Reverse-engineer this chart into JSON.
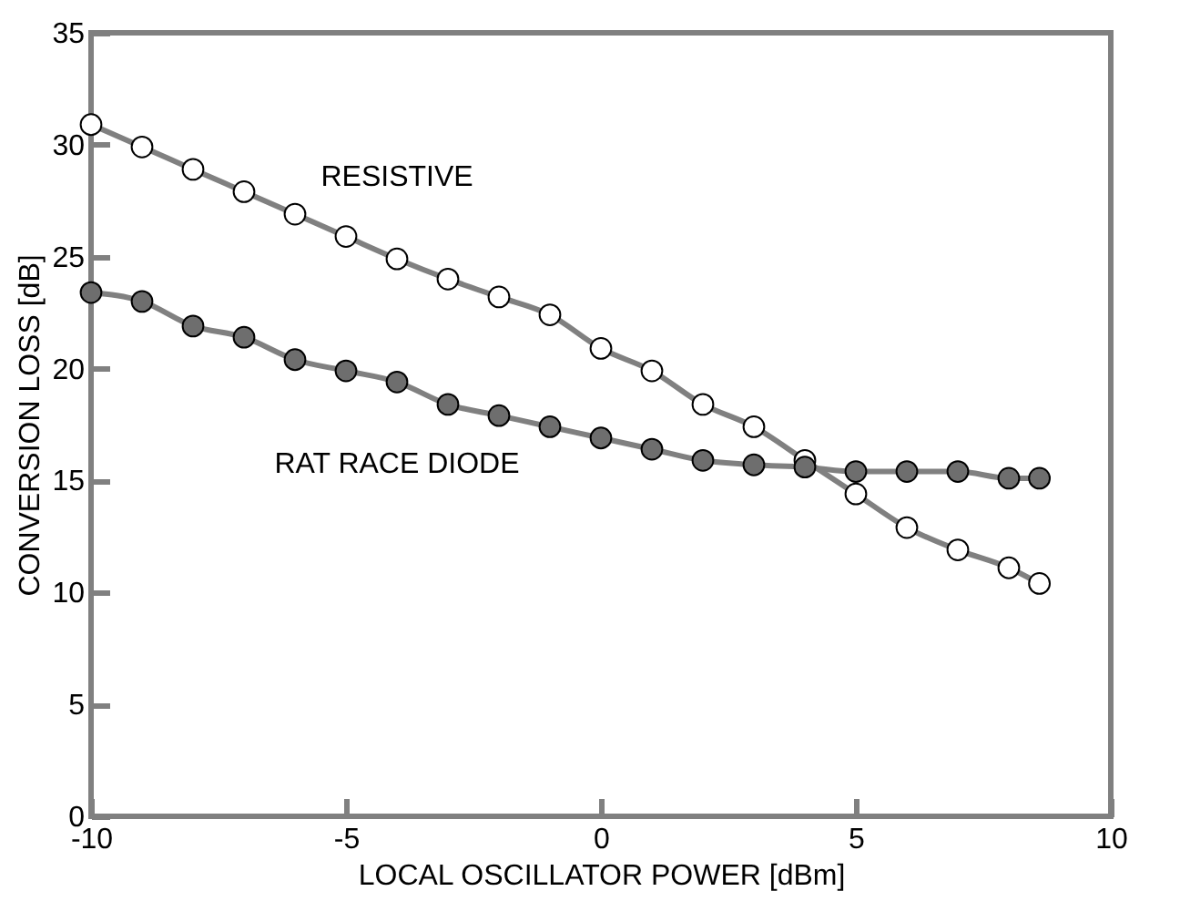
{
  "chart_data": {
    "type": "line",
    "xlabel": "LOCAL OSCILLATOR POWER [dBm]",
    "ylabel": "CONVERSION LOSS [dB]",
    "xlim": [
      -10,
      10
    ],
    "xticks": [
      -10,
      -5,
      0,
      5,
      10
    ],
    "ylim": [
      0,
      35
    ],
    "yticks": [
      0,
      5,
      10,
      15,
      20,
      25,
      30,
      35
    ],
    "x": [
      -10,
      -9,
      -8,
      -7,
      -6,
      -5,
      -4,
      -3,
      -2,
      -1,
      0,
      1,
      2,
      3,
      4,
      5,
      6,
      7,
      8,
      8.6
    ],
    "series": [
      {
        "name": "RESISTIVE",
        "color": "#ffffff",
        "values": [
          30.9,
          29.9,
          28.9,
          27.9,
          26.9,
          25.9,
          24.9,
          24.0,
          23.2,
          22.4,
          20.9,
          19.9,
          18.4,
          17.4,
          15.9,
          14.4,
          12.9,
          11.9,
          11.1,
          10.4
        ]
      },
      {
        "name": "RAT RACE DIODE",
        "color": "#6e6e6e",
        "values": [
          23.4,
          23.0,
          21.9,
          21.4,
          20.4,
          19.9,
          19.4,
          18.4,
          17.9,
          17.4,
          16.9,
          16.4,
          15.9,
          15.7,
          15.6,
          15.4,
          15.4,
          15.4,
          15.1,
          15.1
        ]
      }
    ],
    "marker": "circle",
    "line_style": "solid",
    "grid": false,
    "legend": false
  }
}
